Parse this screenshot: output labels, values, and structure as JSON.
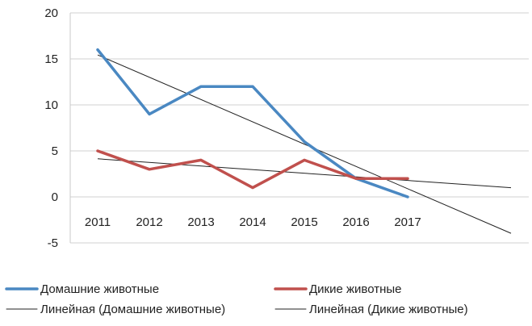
{
  "chart_data": {
    "type": "line",
    "title": "",
    "xlabel": "",
    "ylabel": "",
    "categories": [
      "2011",
      "2012",
      "2013",
      "2014",
      "2015",
      "2016",
      "2017"
    ],
    "ylim": [
      -5,
      20
    ],
    "yticks": [
      -5,
      0,
      5,
      10,
      15,
      20
    ],
    "grid": "horizontal",
    "legend_position": "bottom",
    "series": [
      {
        "name": "Домашние животные",
        "values": [
          16,
          9,
          12,
          12,
          6,
          2,
          0
        ],
        "color": "#4a88c2",
        "style": "thick"
      },
      {
        "name": "Дикие животные",
        "values": [
          5,
          3,
          4,
          1,
          4,
          2,
          2
        ],
        "color": "#c0504d",
        "style": "thick"
      }
    ],
    "trendlines": [
      {
        "name": "Линейная (Домашние животные)",
        "of_series": "Домашние животные",
        "start": 15.43,
        "end": -3.96,
        "end_category_index": 8,
        "color": "#222222"
      },
      {
        "name": "Линейная (Дикие животные)",
        "of_series": "Дикие животные",
        "start": 4.14,
        "end": 1.0,
        "end_category_index": 8,
        "color": "#222222"
      }
    ]
  }
}
